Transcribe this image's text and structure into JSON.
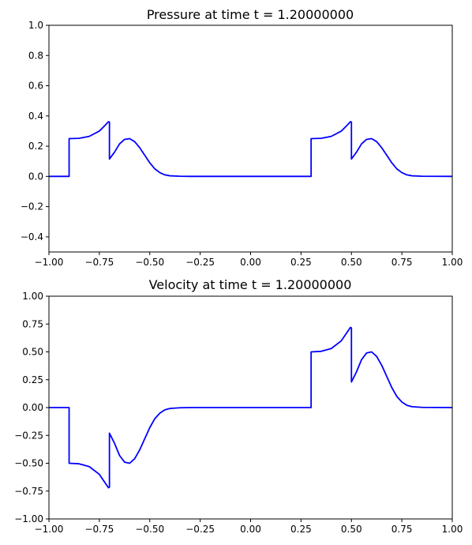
{
  "chart_data": [
    {
      "type": "line",
      "title": "Pressure at time t =     1.20000000",
      "xlabel": "",
      "ylabel": "",
      "xlim": [
        -1.0,
        1.0
      ],
      "ylim": [
        -0.5,
        1.0
      ],
      "xticks": [
        -1.0,
        -0.75,
        -0.5,
        -0.25,
        0.0,
        0.25,
        0.5,
        0.75,
        1.0
      ],
      "xtick_labels": [
        "−1.00",
        "−0.75",
        "−0.50",
        "−0.25",
        "0.00",
        "0.25",
        "0.50",
        "0.75",
        "1.00"
      ],
      "yticks": [
        -0.4,
        -0.2,
        0.0,
        0.2,
        0.4,
        0.6,
        0.8,
        1.0
      ],
      "ytick_labels": [
        "−0.4",
        "−0.2",
        "0.0",
        "0.2",
        "0.4",
        "0.6",
        "0.8",
        "1.0"
      ],
      "grid": false,
      "series": [
        {
          "color": "#0000ff",
          "x": [
            -1.0,
            -0.9,
            -0.9,
            -0.85,
            -0.8,
            -0.75,
            -0.72,
            -0.705,
            -0.7,
            -0.7,
            -0.675,
            -0.65,
            -0.625,
            -0.6,
            -0.575,
            -0.55,
            -0.525,
            -0.5,
            -0.475,
            -0.45,
            -0.425,
            -0.4,
            -0.35,
            -0.3,
            0.3,
            0.3,
            0.35,
            0.4,
            0.45,
            0.48,
            0.495,
            0.5,
            0.5,
            0.525,
            0.55,
            0.575,
            0.6,
            0.625,
            0.65,
            0.675,
            0.7,
            0.725,
            0.75,
            0.775,
            0.8,
            0.85,
            1.0
          ],
          "y": [
            0.0,
            0.0,
            0.25,
            0.252,
            0.265,
            0.3,
            0.34,
            0.362,
            0.36,
            0.115,
            0.16,
            0.215,
            0.245,
            0.25,
            0.23,
            0.19,
            0.14,
            0.09,
            0.05,
            0.025,
            0.01,
            0.004,
            0.001,
            0.0,
            0.0,
            0.25,
            0.252,
            0.265,
            0.3,
            0.34,
            0.362,
            0.36,
            0.115,
            0.16,
            0.215,
            0.245,
            0.25,
            0.23,
            0.19,
            0.14,
            0.09,
            0.05,
            0.025,
            0.01,
            0.004,
            0.001,
            0.0
          ]
        }
      ]
    },
    {
      "type": "line",
      "title": "Velocity at time t =     1.20000000",
      "xlabel": "",
      "ylabel": "",
      "xlim": [
        -1.0,
        1.0
      ],
      "ylim": [
        -1.0,
        1.0
      ],
      "xticks": [
        -1.0,
        -0.75,
        -0.5,
        -0.25,
        0.0,
        0.25,
        0.5,
        0.75,
        1.0
      ],
      "xtick_labels": [
        "−1.00",
        "−0.75",
        "−0.50",
        "−0.25",
        "0.00",
        "0.25",
        "0.50",
        "0.75",
        "1.00"
      ],
      "yticks": [
        -1.0,
        -0.75,
        -0.5,
        -0.25,
        0.0,
        0.25,
        0.5,
        0.75,
        1.0
      ],
      "ytick_labels": [
        "−1.00",
        "−0.75",
        "−0.50",
        "−0.25",
        "0.00",
        "0.25",
        "0.50",
        "0.75",
        "1.00"
      ],
      "grid": false,
      "series": [
        {
          "color": "#0000ff",
          "x": [
            -1.0,
            -0.9,
            -0.9,
            -0.85,
            -0.8,
            -0.75,
            -0.72,
            -0.705,
            -0.7,
            -0.7,
            -0.675,
            -0.65,
            -0.625,
            -0.6,
            -0.575,
            -0.55,
            -0.525,
            -0.5,
            -0.475,
            -0.45,
            -0.425,
            -0.4,
            -0.35,
            -0.3,
            0.3,
            0.3,
            0.35,
            0.4,
            0.45,
            0.48,
            0.495,
            0.5,
            0.5,
            0.525,
            0.55,
            0.575,
            0.6,
            0.625,
            0.65,
            0.675,
            0.7,
            0.725,
            0.75,
            0.775,
            0.8,
            0.85,
            1.0
          ],
          "y": [
            0.0,
            0.0,
            -0.5,
            -0.505,
            -0.53,
            -0.6,
            -0.68,
            -0.72,
            -0.715,
            -0.23,
            -0.32,
            -0.43,
            -0.49,
            -0.5,
            -0.46,
            -0.38,
            -0.28,
            -0.18,
            -0.1,
            -0.05,
            -0.02,
            -0.008,
            -0.002,
            0.0,
            0.0,
            0.5,
            0.505,
            0.53,
            0.6,
            0.68,
            0.72,
            0.715,
            0.23,
            0.32,
            0.43,
            0.49,
            0.5,
            0.46,
            0.38,
            0.28,
            0.18,
            0.1,
            0.05,
            0.02,
            0.008,
            0.002,
            0.0
          ]
        }
      ]
    }
  ]
}
